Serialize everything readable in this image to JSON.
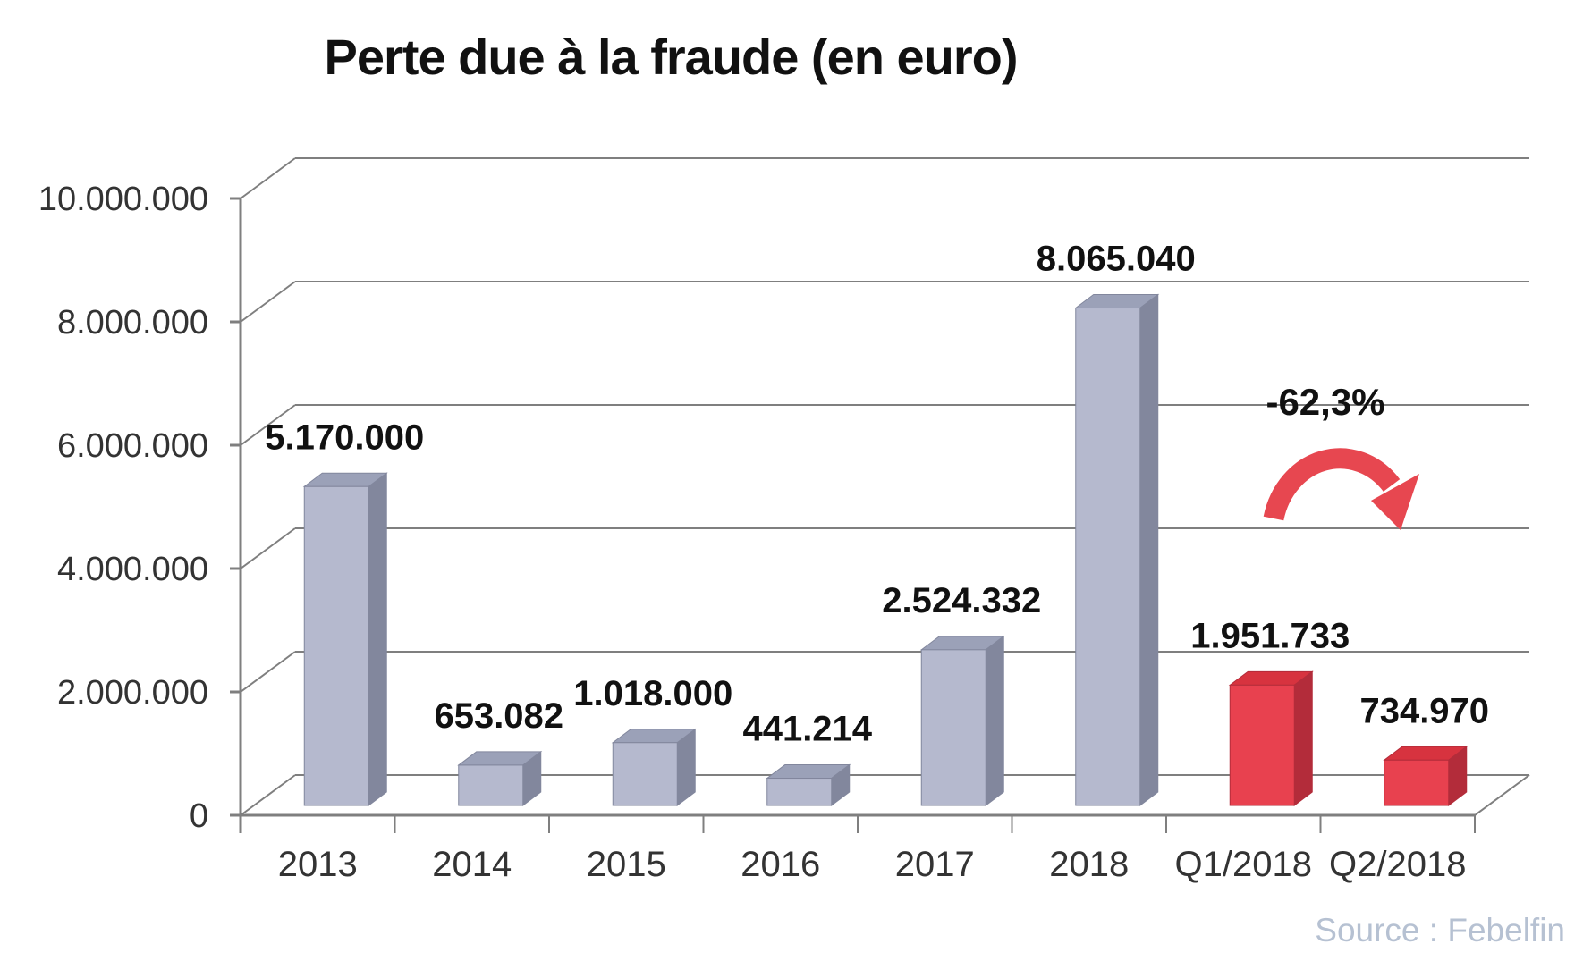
{
  "title": "Perte due à la fraude (en euro)",
  "source_credit": "Source : Febelfin",
  "colors": {
    "background": "#ffffff",
    "grid": "#7f7f7f",
    "label": "#111111",
    "tick_label": "#333333",
    "arrow": "#e74750",
    "source": "#b6c1d2",
    "bar_gray": {
      "front": "#b5b9ce",
      "top": "#9ba1b8",
      "side": "#82879d"
    },
    "bar_red": {
      "front": "#e8414f",
      "top": "#d7333f",
      "side": "#b32c3a"
    }
  },
  "chart_data": {
    "type": "bar",
    "style": "3d-column",
    "title": "Perte due à la fraude (en euro)",
    "categories": [
      "2013",
      "2014",
      "2015",
      "2016",
      "2017",
      "2018",
      "Q1/2018",
      "Q2/2018"
    ],
    "values": [
      5170000,
      653082,
      1018000,
      441214,
      2524332,
      8065040,
      1951733,
      734970
    ],
    "data_labels": [
      "5.170.000",
      "653.082",
      "1.018.000",
      "441.214",
      "2.524.332",
      "8.065.040",
      "1.951.733",
      "734.970"
    ],
    "series_colors": [
      "gray",
      "gray",
      "gray",
      "gray",
      "gray",
      "gray",
      "red",
      "red"
    ],
    "y_axis": {
      "min": 0,
      "max": 10000000,
      "tick_interval": 2000000,
      "tick_labels": [
        "0",
        "2.000.000",
        "4.000.000",
        "6.000.000",
        "8.000.000",
        "10.000.000"
      ]
    },
    "x_axis_label": "",
    "y_axis_label": "",
    "gridlines": true,
    "legend": false,
    "annotation": {
      "text": "-62,3%",
      "arrow": "curved-down-right",
      "refers_to": [
        "Q1/2018",
        "Q2/2018"
      ]
    }
  }
}
